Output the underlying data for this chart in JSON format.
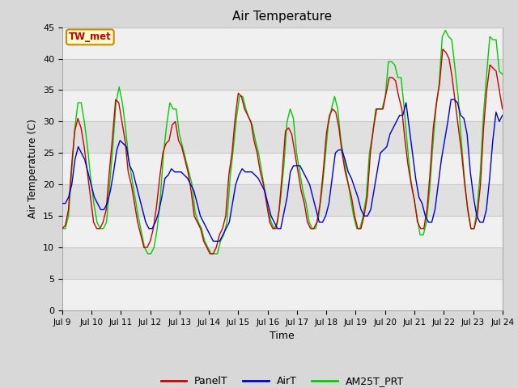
{
  "title": "Air Temperature",
  "ylabel": "Air Temperature (C)",
  "xlabel": "Time",
  "annotation": "TW_met",
  "annotation_color": "#cc0000",
  "annotation_bg": "#ffffcc",
  "annotation_border": "#cc8800",
  "ylim": [
    0,
    45
  ],
  "yticks": [
    0,
    5,
    10,
    15,
    20,
    25,
    30,
    35,
    40,
    45
  ],
  "xtick_labels": [
    "Jul 9",
    "Jul 10",
    "Jul 11",
    "Jul 12",
    "Jul 13",
    "Jul 14",
    "Jul 15",
    "Jul 16",
    "Jul 17",
    "Jul 18",
    "Jul 19",
    "Jul 20",
    "Jul 21",
    "Jul 22",
    "Jul 23",
    "Jul 24"
  ],
  "grid_color": "#c8c8c8",
  "fig_bg_color": "#d8d8d8",
  "plot_bg_light": "#f0f0f0",
  "plot_bg_dark": "#e0e0e0",
  "legend_labels": [
    "PanelT",
    "AirT",
    "AM25T_PRT"
  ],
  "line_colors": [
    "#cc0000",
    "#0000cc",
    "#00cc00"
  ],
  "panel_T": [
    13,
    13.5,
    16,
    23,
    28.5,
    30.5,
    29,
    26,
    22,
    18,
    14,
    13,
    13,
    14,
    16,
    22,
    27.5,
    33.5,
    33,
    30,
    27,
    22,
    20,
    17,
    14,
    12,
    10,
    10,
    11,
    13,
    16.5,
    21,
    25,
    26.5,
    27,
    29.5,
    30,
    27,
    26,
    24,
    22,
    19,
    15,
    14,
    13,
    11,
    10,
    9,
    9,
    10,
    12,
    13,
    15,
    21.5,
    25,
    30.5,
    34.5,
    34,
    32,
    31,
    30,
    27,
    25,
    22,
    20,
    17,
    14,
    13,
    13,
    16,
    22,
    28.5,
    29,
    28,
    25,
    22,
    19,
    17,
    14,
    13,
    13,
    14,
    17,
    22,
    28,
    31,
    32,
    31.5,
    29,
    25,
    22,
    20,
    18,
    15,
    13,
    13,
    15,
    18,
    25,
    29,
    32,
    32,
    32,
    34.5,
    37,
    37,
    36.5,
    34,
    32,
    27,
    23,
    20,
    17.5,
    14,
    13,
    13,
    16,
    22,
    29,
    33,
    36,
    41.5,
    41,
    40,
    37,
    33,
    29,
    25,
    20,
    16,
    13,
    13,
    15,
    20,
    29,
    35,
    39,
    38.5,
    38,
    35,
    32
  ],
  "air_T": [
    17,
    17,
    18,
    20,
    24,
    26,
    25,
    24,
    22,
    20,
    18,
    17,
    16,
    16,
    17,
    19,
    22,
    25.5,
    27,
    26.5,
    26,
    23,
    22,
    20,
    18,
    16,
    14,
    13,
    13,
    14,
    15.5,
    18,
    21,
    21.5,
    22.5,
    22,
    22,
    22,
    21.5,
    21,
    20,
    19,
    17,
    15,
    14,
    13,
    12,
    11,
    11,
    11,
    12,
    13,
    14,
    17,
    20,
    21.5,
    22.5,
    22,
    22,
    22,
    21.5,
    21,
    20,
    19,
    17,
    15,
    14,
    13,
    13,
    15.5,
    18,
    22,
    23,
    23,
    23,
    22,
    21,
    20,
    18,
    16,
    14,
    14,
    15,
    17,
    21,
    25,
    25.5,
    25.5,
    24,
    22,
    21,
    19.5,
    18,
    16,
    15,
    15,
    16,
    19,
    22,
    25,
    25.5,
    26,
    28,
    29,
    30,
    31,
    31,
    33,
    29,
    25,
    21,
    18,
    17,
    15,
    14,
    14,
    16,
    20,
    24,
    27,
    30,
    33.5,
    33.5,
    33,
    31,
    30.5,
    28,
    22,
    18,
    15,
    14,
    14,
    16,
    21,
    27,
    31.5,
    30,
    31
  ],
  "am25t_prt": [
    13,
    13,
    15,
    22,
    29,
    33,
    33,
    30,
    26,
    21,
    17,
    14,
    13,
    13,
    14,
    20,
    26,
    33,
    35.5,
    33,
    29,
    24,
    21,
    18,
    15,
    12.5,
    10,
    9,
    9,
    10,
    13,
    18,
    25,
    29.5,
    33,
    32,
    32,
    28,
    26,
    24,
    22,
    20,
    15.5,
    14,
    13,
    11,
    10,
    9,
    9,
    9,
    11,
    12,
    14,
    21,
    25.5,
    30.5,
    34,
    34,
    32,
    30.5,
    29.5,
    27,
    25,
    22,
    19,
    16,
    14,
    13,
    14,
    18,
    23,
    30,
    32,
    30.5,
    25,
    22,
    19,
    17,
    14,
    13,
    13,
    15,
    19,
    24,
    29.5,
    32,
    34,
    32,
    27,
    24,
    21,
    18,
    15,
    13,
    13,
    15,
    18,
    25,
    28,
    32,
    32,
    32,
    34,
    39.5,
    39.5,
    39,
    37,
    37,
    32,
    26,
    21,
    18,
    15,
    12,
    12,
    14,
    19,
    26,
    32,
    36,
    43.5,
    44.5,
    43.5,
    43,
    38.5,
    34,
    27,
    21,
    16,
    13,
    13,
    16,
    22,
    31,
    37.5,
    43.5,
    43,
    43,
    38,
    37.5
  ]
}
